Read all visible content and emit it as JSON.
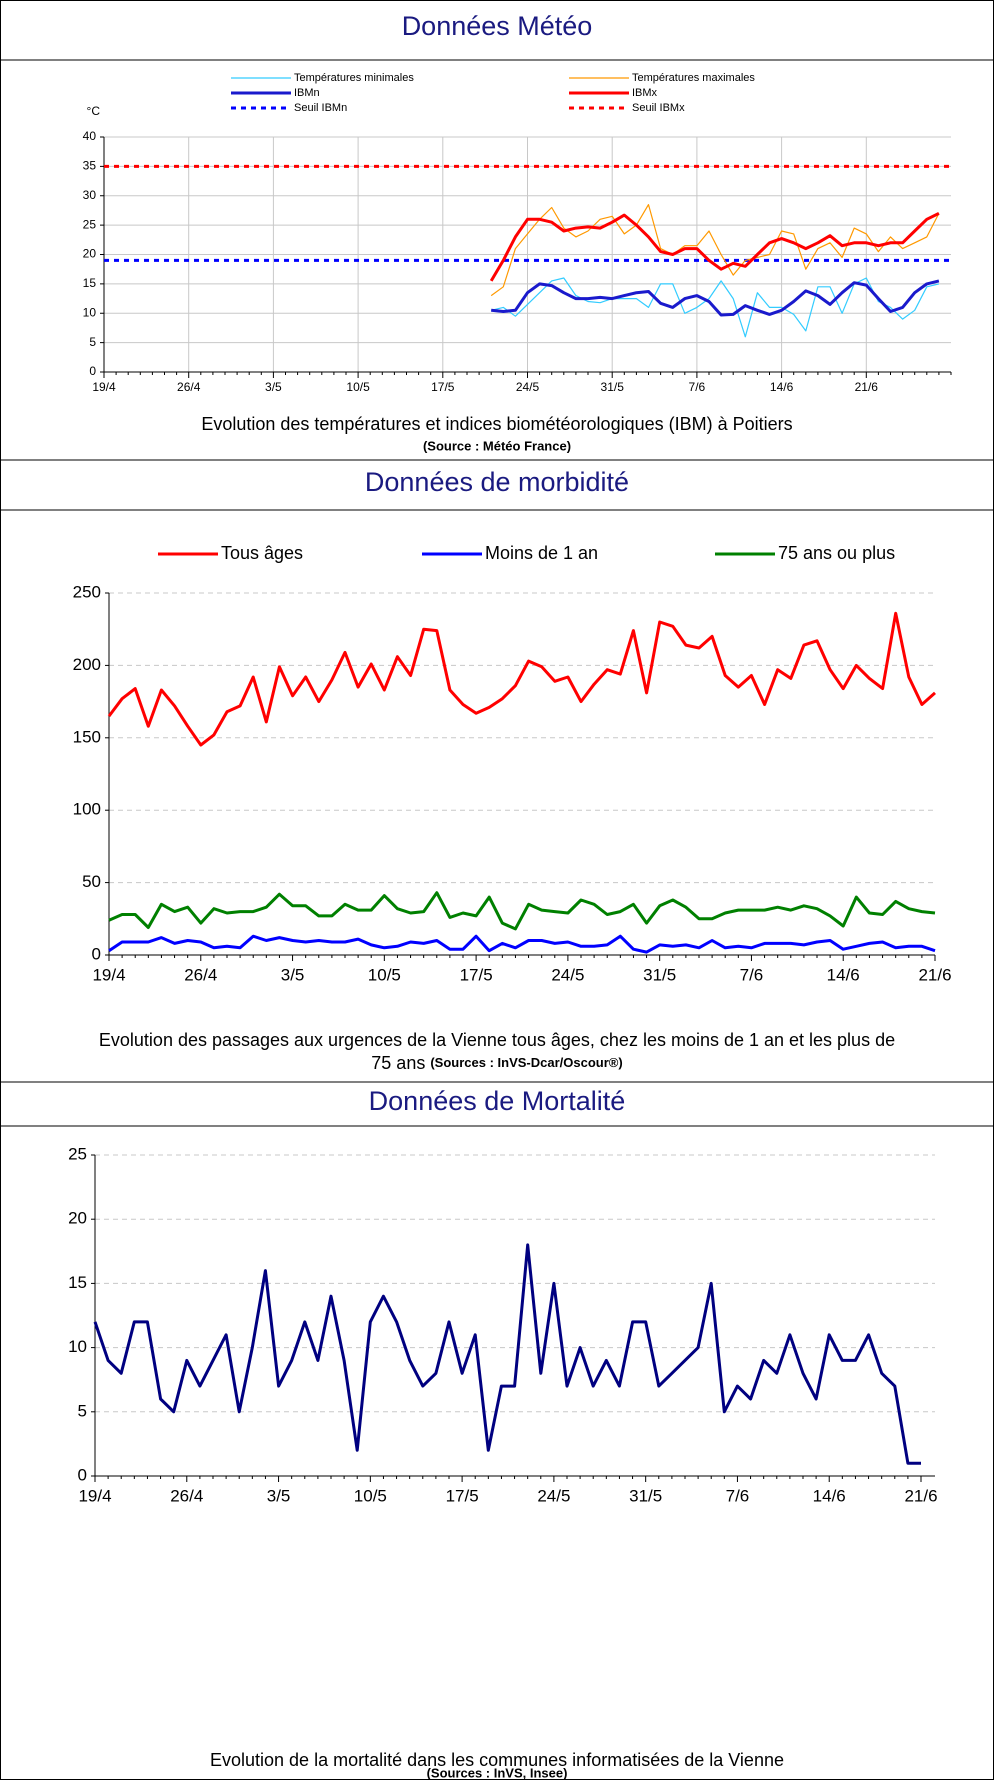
{
  "sections": [
    {
      "title": "Données Météo"
    },
    {
      "title": "Données de morbidité"
    },
    {
      "title": "Données de Mortalité"
    }
  ],
  "chart_data": [
    {
      "type": "line",
      "y_label": "°C",
      "caption": [
        "Evolution des températures et indices biométéorologiques (IBM) à Poitiers"
      ],
      "source": "(Source : Météo France)",
      "categories": [
        "19/4",
        null,
        null,
        null,
        null,
        null,
        null,
        "26/4",
        null,
        null,
        null,
        null,
        null,
        null,
        "3/5",
        null,
        null,
        null,
        null,
        null,
        null,
        "10/5",
        null,
        null,
        null,
        null,
        null,
        null,
        "17/5",
        null,
        null,
        null,
        null,
        null,
        null,
        "24/5",
        null,
        null,
        null,
        null,
        null,
        null,
        "31/5",
        null,
        null,
        null,
        null,
        null,
        null,
        "7/6",
        null,
        null,
        null,
        null,
        null,
        null,
        "14/6",
        null,
        null,
        null,
        null,
        null,
        null,
        "21/6",
        null,
        null,
        null,
        null,
        null,
        null,
        null
      ],
      "ylim": [
        0,
        40
      ],
      "yticks": [
        0,
        5,
        10,
        15,
        20,
        25,
        30,
        35,
        40
      ],
      "grid": true,
      "grid_style": "solid",
      "series": [
        {
          "name": "Températures minimales",
          "color": "#33ccff",
          "width": 1.2,
          "values": [
            null,
            null,
            null,
            null,
            null,
            null,
            null,
            null,
            null,
            null,
            null,
            null,
            null,
            null,
            null,
            null,
            null,
            null,
            null,
            null,
            null,
            null,
            null,
            null,
            null,
            null,
            null,
            null,
            null,
            null,
            null,
            null,
            10.5,
            11,
            9.5,
            11.5,
            13.5,
            15.5,
            16,
            13,
            12,
            11.8,
            12.5,
            12.5,
            12.5,
            11,
            15,
            15,
            10,
            11,
            12.5,
            15.5,
            12.5,
            6,
            13.5,
            11,
            11,
            9.8,
            7,
            14.5,
            14.5,
            10,
            15,
            16,
            12,
            11,
            9,
            10.5,
            14.5,
            15,
            null
          ]
        },
        {
          "name": "Températures maximales",
          "color": "#ff9900",
          "width": 1.2,
          "values": [
            null,
            null,
            null,
            null,
            null,
            null,
            null,
            null,
            null,
            null,
            null,
            null,
            null,
            null,
            null,
            null,
            null,
            null,
            null,
            null,
            null,
            null,
            null,
            null,
            null,
            null,
            null,
            null,
            null,
            null,
            null,
            null,
            13,
            14.5,
            21,
            23.5,
            26,
            28,
            24.5,
            23,
            24,
            26,
            26.5,
            23.5,
            25,
            28.5,
            21,
            20,
            21.5,
            21.5,
            24,
            20,
            16.5,
            19,
            19.5,
            20,
            24,
            23.5,
            17.5,
            21,
            22,
            19.5,
            24.5,
            23.5,
            20.5,
            23,
            21,
            22,
            23,
            27,
            null
          ]
        },
        {
          "name": "IBMn",
          "color": "#1a1acc",
          "width": 3,
          "values": [
            null,
            null,
            null,
            null,
            null,
            null,
            null,
            null,
            null,
            null,
            null,
            null,
            null,
            null,
            null,
            null,
            null,
            null,
            null,
            null,
            null,
            null,
            null,
            null,
            null,
            null,
            null,
            null,
            null,
            null,
            null,
            null,
            10.5,
            10.3,
            10.5,
            13.5,
            15,
            14.7,
            13.5,
            12.5,
            12.5,
            12.7,
            12.5,
            13,
            13.5,
            13.7,
            11.7,
            11,
            12.5,
            13,
            12,
            9.7,
            9.8,
            11.3,
            10.5,
            9.8,
            10.5,
            12,
            13.8,
            13,
            11.5,
            13.5,
            15.2,
            14.8,
            12.5,
            10.3,
            11,
            13.5,
            15,
            15.5,
            null
          ]
        },
        {
          "name": "IBMx",
          "color": "#ff0000",
          "width": 3,
          "values": [
            null,
            null,
            null,
            null,
            null,
            null,
            null,
            null,
            null,
            null,
            null,
            null,
            null,
            null,
            null,
            null,
            null,
            null,
            null,
            null,
            null,
            null,
            null,
            null,
            null,
            null,
            null,
            null,
            null,
            null,
            null,
            null,
            15.5,
            19,
            23,
            26,
            26,
            25.5,
            24,
            24.5,
            24.7,
            24.5,
            25.5,
            26.7,
            25,
            23,
            20.5,
            20,
            21,
            21,
            19,
            17.5,
            18.5,
            18,
            20,
            22,
            22.7,
            22,
            21,
            22,
            23.2,
            21.5,
            22,
            22,
            21.5,
            22,
            22,
            24,
            26,
            27,
            null
          ]
        }
      ],
      "thresholds": [
        {
          "name": "Seuil IBMn",
          "color": "#0000ff",
          "value": 19
        },
        {
          "name": "Seuil IBMx",
          "color": "#ff0000",
          "value": 35
        }
      ]
    },
    {
      "type": "line",
      "caption": [
        "Evolution des passages aux urgences de la Vienne tous âges, chez les moins de 1 an et les plus de",
        "75 ans"
      ],
      "source": "(Sources : InVS-Dcar/Oscour®)",
      "categories": [
        "19/4",
        null,
        null,
        null,
        null,
        null,
        null,
        "26/4",
        null,
        null,
        null,
        null,
        null,
        null,
        "3/5",
        null,
        null,
        null,
        null,
        null,
        null,
        "10/5",
        null,
        null,
        null,
        null,
        null,
        null,
        "17/5",
        null,
        null,
        null,
        null,
        null,
        null,
        "24/5",
        null,
        null,
        null,
        null,
        null,
        null,
        "31/5",
        null,
        null,
        null,
        null,
        null,
        null,
        "7/6",
        null,
        null,
        null,
        null,
        null,
        null,
        "14/6",
        null,
        null,
        null,
        null,
        null,
        null,
        "21/6"
      ],
      "ylim": [
        0,
        250
      ],
      "yticks": [
        0,
        50,
        100,
        150,
        200,
        250
      ],
      "grid": true,
      "grid_style": "dashed",
      "series": [
        {
          "name": "Tous âges",
          "color": "#ff0000",
          "width": 3,
          "values": [
            165,
            177,
            184,
            158,
            183,
            172,
            158,
            145,
            152,
            168,
            172,
            192,
            161,
            199,
            179,
            192,
            175,
            190,
            209,
            185,
            201,
            183,
            206,
            193,
            225,
            224,
            183,
            173,
            167,
            171,
            177,
            186,
            203,
            199,
            189,
            192,
            175,
            187,
            197,
            194,
            224,
            181,
            230,
            227,
            214,
            212,
            220,
            193,
            185,
            193,
            173,
            197,
            191,
            214,
            217,
            197,
            184,
            200,
            191,
            184,
            236,
            192,
            173,
            181
          ]
        },
        {
          "name": "Moins de 1 an",
          "color": "#0000ff",
          "width": 3,
          "values": [
            3,
            9,
            9,
            9,
            12,
            8,
            10,
            9,
            5,
            6,
            5,
            13,
            10,
            12,
            10,
            9,
            10,
            9,
            9,
            11,
            7,
            5,
            6,
            9,
            8,
            10,
            4,
            4,
            13,
            3,
            8,
            5,
            10,
            10,
            8,
            9,
            6,
            6,
            7,
            13,
            4,
            2,
            7,
            6,
            7,
            5,
            10,
            5,
            6,
            5,
            8,
            8,
            8,
            7,
            9,
            10,
            4,
            6,
            8,
            9,
            5,
            6,
            6,
            3
          ]
        },
        {
          "name": "75 ans ou plus",
          "color": "#008000",
          "width": 3,
          "values": [
            24,
            28,
            28,
            19,
            35,
            30,
            33,
            22,
            32,
            29,
            30,
            30,
            33,
            42,
            34,
            34,
            27,
            27,
            35,
            31,
            31,
            41,
            32,
            29,
            30,
            43,
            26,
            29,
            27,
            40,
            22,
            18,
            35,
            31,
            30,
            29,
            38,
            35,
            28,
            30,
            35,
            22,
            34,
            38,
            33,
            25,
            25,
            29,
            31,
            31,
            31,
            33,
            31,
            34,
            32,
            27,
            20,
            40,
            29,
            28,
            37,
            32,
            30,
            29
          ]
        }
      ]
    },
    {
      "type": "line",
      "caption": [
        "Evolution de la mortalité dans les communes informatisées de  la Vienne"
      ],
      "source": "(Sources : InVS, Insee)",
      "categories": [
        "19/4",
        null,
        null,
        null,
        null,
        null,
        null,
        "26/4",
        null,
        null,
        null,
        null,
        null,
        null,
        "3/5",
        null,
        null,
        null,
        null,
        null,
        null,
        "10/5",
        null,
        null,
        null,
        null,
        null,
        null,
        "17/5",
        null,
        null,
        null,
        null,
        null,
        null,
        "24/5",
        null,
        null,
        null,
        null,
        null,
        null,
        "31/5",
        null,
        null,
        null,
        null,
        null,
        null,
        "7/6",
        null,
        null,
        null,
        null,
        null,
        null,
        "14/6",
        null,
        null,
        null,
        null,
        null,
        null,
        "21/6"
      ],
      "ylim": [
        0,
        25
      ],
      "yticks": [
        0,
        5,
        10,
        15,
        20,
        25
      ],
      "grid": true,
      "grid_style": "dashed",
      "series": [
        {
          "color": "#000080",
          "width": 3,
          "values": [
            12,
            9,
            8,
            12,
            12,
            6,
            5,
            9,
            7,
            9,
            11,
            5,
            10,
            16,
            7,
            9,
            12,
            9,
            14,
            9,
            2,
            12,
            14,
            12,
            9,
            7,
            8,
            12,
            8,
            11,
            2,
            7,
            7,
            18,
            8,
            15,
            7,
            10,
            7,
            9,
            7,
            12,
            12,
            7,
            8,
            9,
            10,
            15,
            5,
            7,
            6,
            9,
            8,
            11,
            8,
            6,
            11,
            9,
            9,
            11,
            8,
            7,
            1,
            1
          ]
        }
      ]
    }
  ]
}
